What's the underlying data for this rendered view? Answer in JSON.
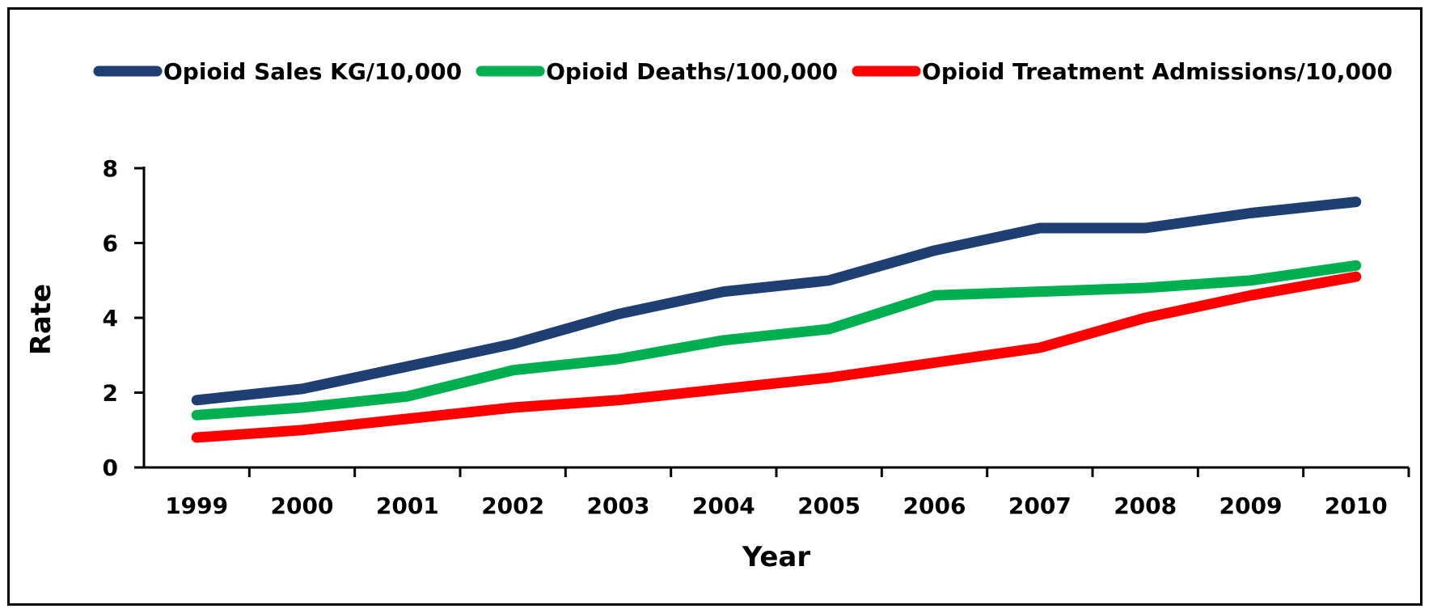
{
  "chart_data": {
    "type": "line",
    "title": "",
    "xlabel": "Year",
    "ylabel": "Rate",
    "x": [
      "1999",
      "2000",
      "2001",
      "2002",
      "2003",
      "2004",
      "2005",
      "2006",
      "2007",
      "2008",
      "2009",
      "2010"
    ],
    "yticks": [
      "0",
      "2",
      "4",
      "6",
      "8"
    ],
    "ylim": [
      0,
      8
    ],
    "grid": false,
    "legend_position": "top",
    "series": [
      {
        "name": "Opioid Sales KG/10,000",
        "color": "#1F3F73",
        "values": [
          1.8,
          2.1,
          2.7,
          3.3,
          4.1,
          4.7,
          5.0,
          5.8,
          6.4,
          6.4,
          6.8,
          7.1
        ]
      },
      {
        "name": "Opioid Deaths/100,000",
        "color": "#00B050",
        "values": [
          1.4,
          1.6,
          1.9,
          2.6,
          2.9,
          3.4,
          3.7,
          4.6,
          4.7,
          4.8,
          5.0,
          5.4
        ]
      },
      {
        "name": "Opioid Treatment Admissions/10,000",
        "color": "#FF0000",
        "values": [
          0.8,
          1.0,
          1.3,
          1.6,
          1.8,
          2.1,
          2.4,
          2.8,
          3.2,
          4.0,
          4.6,
          5.1
        ]
      }
    ]
  }
}
